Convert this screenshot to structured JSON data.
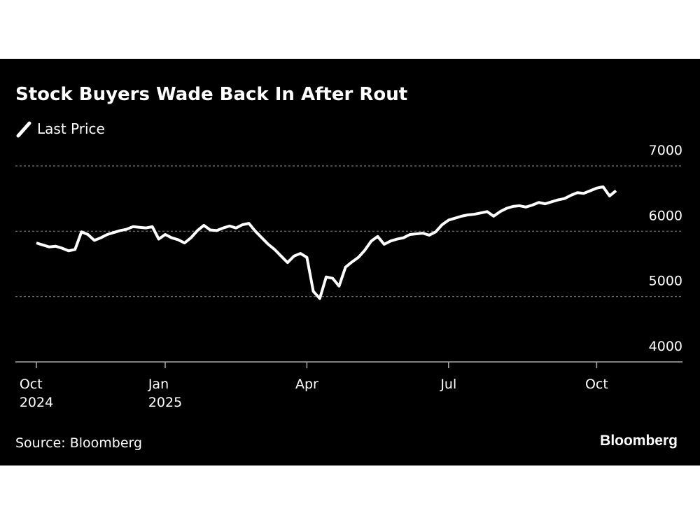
{
  "chart_data": {
    "type": "line",
    "title": "Stock Buyers Wade Back In After Rout",
    "source": "Source: Bloomberg",
    "brand": "Bloomberg",
    "categories": [
      "Oct\n2024",
      null,
      null,
      null,
      null,
      null,
      null,
      null,
      null,
      null,
      null,
      null,
      null,
      null,
      null,
      null,
      null,
      null,
      null,
      null,
      "Jan\n2025",
      null,
      null,
      null,
      null,
      null,
      null,
      null,
      null,
      null,
      null,
      null,
      null,
      null,
      null,
      null,
      null,
      null,
      null,
      null,
      null,
      null,
      "Apr",
      null,
      null,
      null,
      null,
      null,
      null,
      null,
      null,
      null,
      null,
      null,
      null,
      null,
      null,
      null,
      null,
      null,
      null,
      null,
      null,
      null,
      "Jul",
      null,
      null,
      null,
      null,
      null,
      null,
      null,
      null,
      null,
      null,
      null,
      null,
      null,
      null,
      null,
      null,
      null,
      null,
      null,
      null,
      null,
      null,
      "Oct",
      null,
      null,
      null
    ],
    "series": [
      {
        "name": "Last Price",
        "color": "#ffffff",
        "values": [
          5820,
          5790,
          5760,
          5770,
          5740,
          5700,
          5720,
          5990,
          5950,
          5860,
          5900,
          5950,
          5980,
          6010,
          6030,
          6070,
          6060,
          6050,
          6070,
          5880,
          5950,
          5900,
          5870,
          5820,
          5900,
          6010,
          6090,
          6020,
          6010,
          6050,
          6080,
          6050,
          6100,
          6120,
          6000,
          5900,
          5800,
          5720,
          5620,
          5520,
          5620,
          5660,
          5600,
          5080,
          4970,
          5300,
          5280,
          5160,
          5450,
          5530,
          5600,
          5710,
          5850,
          5920,
          5800,
          5850,
          5880,
          5900,
          5950,
          5960,
          5970,
          5940,
          5990,
          6100,
          6170,
          6200,
          6230,
          6250,
          6260,
          6280,
          6300,
          6230,
          6300,
          6350,
          6380,
          6390,
          6370,
          6400,
          6440,
          6420,
          6450,
          6480,
          6500,
          6550,
          6590,
          6580,
          6620,
          6660,
          6680,
          6540,
          6620
        ]
      }
    ],
    "ylim": [
      4000,
      7000
    ],
    "yticks": [
      4000,
      5000,
      6000,
      7000
    ],
    "grid": true
  }
}
